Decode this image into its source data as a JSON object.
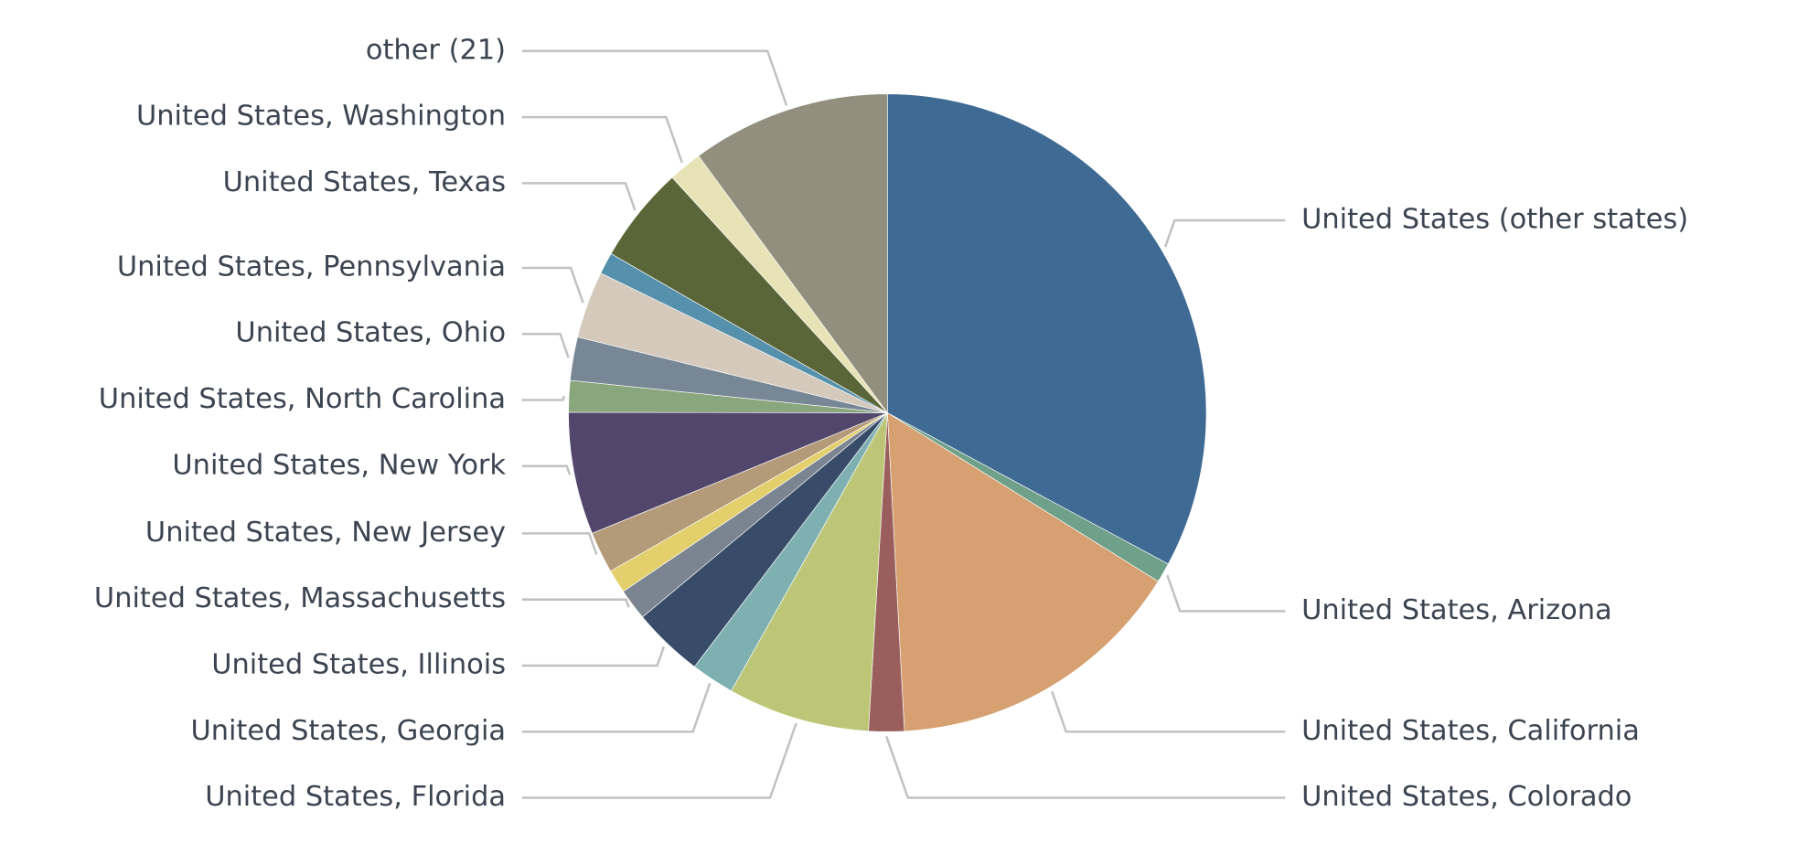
{
  "chart_data": {
    "type": "pie",
    "categories": [
      "United States (other states)",
      "United States, Arizona",
      "United States, California",
      "United States, Colorado",
      "United States, Florida",
      "United States, Georgia",
      "United States, Illinois",
      "United States, Massachusetts",
      null,
      "United States, New Jersey",
      "United States, New York",
      "United States, North Carolina",
      "United States, Ohio",
      "United States, Pennsylvania",
      null,
      "United States, Texas",
      "United States, Washington",
      "other (21)"
    ],
    "values": [
      32.9,
      1.0,
      15.3,
      1.8,
      7.2,
      2.2,
      3.6,
      1.6,
      1.2,
      2.1,
      6.2,
      1.6,
      2.2,
      3.4,
      1.1,
      4.9,
      1.7,
      10.1
    ],
    "colors": [
      "#3e6a93",
      "#6fa08a",
      "#d6a070",
      "#9a5f5c",
      "#bcc676",
      "#7fb0b1",
      "#384c69",
      "#7b8591",
      "#e3d06c",
      "#b39a78",
      "#53466d",
      "#8aa67d",
      "#788795",
      "#d5c9bb",
      "#5591ad",
      "#5b6638",
      "#e7e3b6",
      "#938f7f"
    ]
  }
}
